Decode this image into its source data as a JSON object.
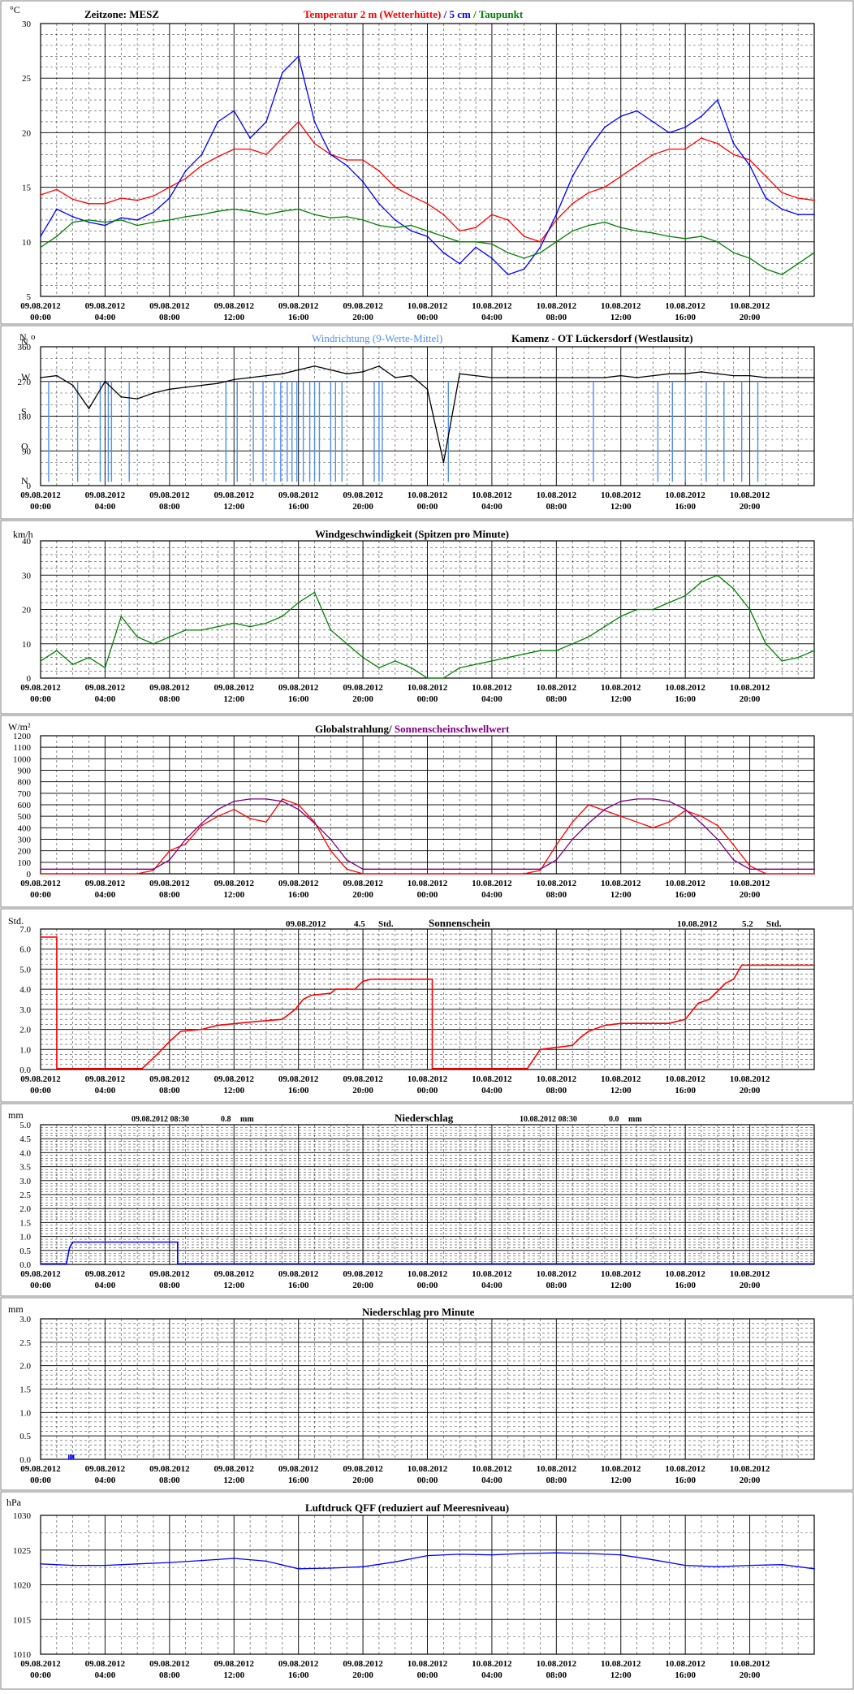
{
  "colors": {
    "temp": "#ff0000",
    "soil": "#0000ff",
    "dew": "#008000",
    "wind_dir_line": "#4f8ff0",
    "wind_dir_avg": "#000000",
    "wind_speed": "#008000",
    "radiation": "#ff0000",
    "threshold": "#800080",
    "sunshine": "#ff0000",
    "precip": "#0000ff",
    "precip_min": "#0000ff",
    "pressure": "#0000ff",
    "grid": "#000000",
    "panel_border": "#808080"
  },
  "x_ticks": [
    {
      "date": "09.08.2012",
      "time": "00:00"
    },
    {
      "date": "09.08.2012",
      "time": "04:00"
    },
    {
      "date": "09.08.2012",
      "time": "08:00"
    },
    {
      "date": "09.08.2012",
      "time": "12:00"
    },
    {
      "date": "09.08.2012",
      "time": "16:00"
    },
    {
      "date": "09.08.2012",
      "time": "20:00"
    },
    {
      "date": "10.08.2012",
      "time": "00:00"
    },
    {
      "date": "10.08.2012",
      "time": "04:00"
    },
    {
      "date": "10.08.2012",
      "time": "08:00"
    },
    {
      "date": "10.08.2012",
      "time": "12:00"
    },
    {
      "date": "10.08.2012",
      "time": "16:00"
    },
    {
      "date": "10.08.2012",
      "time": "20:00"
    }
  ],
  "chart_data": [
    {
      "id": "temperature",
      "type": "line",
      "unit": "°C",
      "timezone_label": "Zeitzone: MESZ",
      "title_parts": [
        "Temperatur 2 m (Wetterhütte)",
        " / ",
        "5 cm",
        " / ",
        "Taupunkt"
      ],
      "ylim": [
        5,
        30
      ],
      "yticks": [
        5,
        10,
        15,
        20,
        25,
        30
      ],
      "x_hours": [
        0,
        1,
        2,
        3,
        4,
        5,
        6,
        7,
        8,
        9,
        10,
        11,
        12,
        13,
        14,
        15,
        16,
        17,
        18,
        19,
        20,
        21,
        22,
        23,
        24,
        25,
        26,
        27,
        28,
        29,
        30,
        31,
        32,
        33,
        34,
        35,
        36,
        37,
        38,
        39,
        40,
        41,
        42,
        43,
        44,
        45,
        46,
        47,
        48
      ],
      "series": [
        {
          "name": "Temperatur 2 m (Wetterhütte)",
          "color": "temp",
          "values": [
            14.3,
            14.8,
            13.9,
            13.5,
            13.5,
            14.0,
            13.8,
            14.2,
            15.0,
            15.8,
            17.0,
            17.8,
            18.5,
            18.5,
            18.0,
            19.5,
            21.0,
            19.0,
            18.0,
            17.5,
            17.5,
            16.5,
            15.0,
            14.2,
            13.5,
            12.5,
            11.0,
            11.3,
            12.5,
            12.0,
            10.5,
            10.0,
            12.0,
            13.5,
            14.5,
            15.0,
            16.0,
            17.0,
            18.0,
            18.5,
            18.5,
            19.5,
            19.0,
            18.0,
            17.5,
            16.0,
            14.5,
            14.0,
            13.8
          ]
        },
        {
          "name": "5 cm",
          "color": "soil",
          "values": [
            10.5,
            13.0,
            12.3,
            11.8,
            11.5,
            12.2,
            12.0,
            12.7,
            14.0,
            16.5,
            18.0,
            21.0,
            22.0,
            19.5,
            21.0,
            25.5,
            27.0,
            21.0,
            18.0,
            17.0,
            15.5,
            13.5,
            12.0,
            11.0,
            10.5,
            9.0,
            8.0,
            9.5,
            8.5,
            7.0,
            7.5,
            9.5,
            12.5,
            16.0,
            18.5,
            20.5,
            21.5,
            22.0,
            21.0,
            20.0,
            20.5,
            21.5,
            23.0,
            19.0,
            17.0,
            14.0,
            13.0,
            12.5,
            12.5
          ]
        },
        {
          "name": "Taupunkt",
          "color": "dew",
          "values": [
            9.5,
            10.5,
            11.8,
            12.0,
            11.8,
            12.0,
            11.5,
            11.8,
            12.0,
            12.3,
            12.5,
            12.8,
            13.0,
            12.8,
            12.5,
            12.8,
            13.0,
            12.5,
            12.2,
            12.3,
            12.0,
            11.5,
            11.3,
            11.5,
            11.0,
            10.5,
            10.0,
            10.0,
            9.8,
            9.0,
            8.5,
            9.0,
            10.0,
            11.0,
            11.5,
            11.8,
            11.3,
            11.0,
            10.8,
            10.5,
            10.3,
            10.5,
            10.0,
            9.0,
            8.5,
            7.5,
            7.0,
            8.0,
            9.0
          ]
        }
      ]
    },
    {
      "id": "wind_direction",
      "type": "line",
      "unit": "N",
      "unit_symbol": "o",
      "title": "Windrichtung (9-Werte-Mittel)",
      "station": "Kamenz - OT Lückersdorf (Westlausitz)",
      "ylim": [
        0,
        360
      ],
      "yticks": [
        0,
        90,
        180,
        270,
        360
      ],
      "compass_labels": [
        "N",
        "O",
        "S",
        "W",
        "N"
      ],
      "x_hours": [
        0,
        1,
        2,
        3,
        4,
        5,
        6,
        7,
        8,
        9,
        10,
        11,
        12,
        13,
        14,
        15,
        16,
        17,
        18,
        19,
        20,
        21,
        22,
        23,
        24,
        25,
        26,
        27,
        28,
        29,
        30,
        31,
        32,
        33,
        34,
        35,
        36,
        37,
        38,
        39,
        40,
        41,
        42,
        43,
        44,
        45,
        46,
        47,
        48
      ],
      "series": [
        {
          "name": "Windrichtung (9-Werte-Mittel)",
          "color": "wind_dir_avg",
          "values": [
            280,
            285,
            260,
            200,
            270,
            230,
            225,
            240,
            250,
            255,
            260,
            265,
            275,
            280,
            285,
            290,
            300,
            310,
            300,
            290,
            295,
            310,
            280,
            285,
            250,
            60,
            290,
            285,
            280,
            280,
            280,
            280,
            280,
            280,
            280,
            280,
            285,
            280,
            285,
            290,
            290,
            295,
            290,
            285,
            285,
            280,
            280,
            280,
            280
          ]
        }
      ],
      "spike_hours": [
        0.5,
        2.3,
        3.7,
        4.2,
        4.4,
        5.5,
        11.5,
        12.2,
        13.2,
        13.8,
        14.5,
        14.9,
        15.3,
        15.6,
        15.9,
        16.3,
        16.7,
        17.0,
        17.3,
        18.0,
        18.3,
        18.7,
        20.7,
        21.0,
        21.2,
        25.3,
        34.3,
        38.3,
        39.2,
        40.0,
        41.3,
        42.4,
        43.5,
        44.5
      ]
    },
    {
      "id": "wind_speed",
      "type": "line",
      "unit": "km/h",
      "title": "Windgeschwindigkeit (Spitzen pro Minute)",
      "ylim": [
        0,
        40
      ],
      "yticks": [
        0,
        10,
        20,
        30,
        40
      ],
      "x_hours": [
        0,
        1,
        2,
        3,
        4,
        5,
        6,
        7,
        8,
        9,
        10,
        11,
        12,
        13,
        14,
        15,
        16,
        17,
        18,
        19,
        20,
        21,
        22,
        23,
        24,
        25,
        26,
        27,
        28,
        29,
        30,
        31,
        32,
        33,
        34,
        35,
        36,
        37,
        38,
        39,
        40,
        41,
        42,
        43,
        44,
        45,
        46,
        47,
        48
      ],
      "series": [
        {
          "name": "Windgeschwindigkeit",
          "color": "wind_speed",
          "values": [
            5,
            8,
            4,
            6,
            3,
            18,
            12,
            10,
            12,
            14,
            14,
            15,
            16,
            15,
            16,
            18,
            22,
            25,
            14,
            10,
            6,
            3,
            5,
            3,
            0,
            0,
            3,
            4,
            5,
            6,
            7,
            8,
            8,
            10,
            12,
            15,
            18,
            20,
            20,
            22,
            24,
            28,
            30,
            26,
            20,
            10,
            5,
            6,
            8
          ]
        }
      ]
    },
    {
      "id": "global_radiation",
      "type": "line",
      "unit": "W/m²",
      "title_parts": [
        "Globalstrahlung/ ",
        "Sonnenscheinschwellwert"
      ],
      "ylim": [
        0,
        1200
      ],
      "yticks": [
        0,
        100,
        200,
        300,
        400,
        500,
        600,
        700,
        800,
        900,
        1000,
        1100,
        1200
      ],
      "x_hours": [
        0,
        1,
        2,
        3,
        4,
        5,
        6,
        7,
        8,
        9,
        10,
        11,
        12,
        13,
        14,
        15,
        16,
        17,
        18,
        19,
        20,
        21,
        22,
        23,
        24,
        25,
        26,
        27,
        28,
        29,
        30,
        31,
        32,
        33,
        34,
        35,
        36,
        37,
        38,
        39,
        40,
        41,
        42,
        43,
        44,
        45,
        46,
        47,
        48
      ],
      "series": [
        {
          "name": "Globalstrahlung",
          "color": "radiation",
          "values": [
            0,
            0,
            0,
            0,
            0,
            0,
            0,
            30,
            200,
            260,
            420,
            500,
            560,
            480,
            450,
            650,
            600,
            450,
            200,
            40,
            0,
            0,
            0,
            0,
            0,
            0,
            0,
            0,
            0,
            0,
            0,
            30,
            250,
            450,
            600,
            550,
            500,
            450,
            400,
            450,
            550,
            500,
            420,
            250,
            70,
            0,
            0,
            0,
            0
          ]
        },
        {
          "name": "Sonnenscheinschwellwert",
          "color": "threshold",
          "values": [
            40,
            40,
            40,
            40,
            40,
            40,
            40,
            40,
            120,
            300,
            440,
            560,
            630,
            650,
            650,
            630,
            560,
            440,
            300,
            120,
            40,
            40,
            40,
            40,
            40,
            40,
            40,
            40,
            40,
            40,
            40,
            40,
            120,
            300,
            440,
            560,
            630,
            650,
            650,
            630,
            560,
            440,
            300,
            120,
            40,
            40,
            40,
            40,
            40
          ]
        }
      ]
    },
    {
      "id": "sunshine",
      "type": "line",
      "unit": "Std.",
      "title": "Sonnenschein",
      "day1_label": "09.08.2012",
      "day1_value": "4.5",
      "day1_unit": "Std.",
      "day2_label": "10.08.2012",
      "day2_value": "5.2",
      "day2_unit": "Std.",
      "ylim": [
        0,
        7
      ],
      "yticks": [
        0,
        1,
        2,
        3,
        4,
        5,
        6,
        7
      ],
      "ytick_labels": [
        "0.0",
        "1.0",
        "2.0",
        "3.0",
        "4.0",
        "5.0",
        "6.0",
        "7.0"
      ],
      "series": [
        {
          "name": "Sonnenschein",
          "color": "sunshine",
          "points": [
            [
              0,
              6.6
            ],
            [
              1,
              6.6
            ],
            [
              1,
              0.05
            ],
            [
              6.3,
              0.05
            ],
            [
              7.3,
              0.8
            ],
            [
              8,
              1.4
            ],
            [
              8.7,
              1.9
            ],
            [
              10,
              2.0
            ],
            [
              11,
              2.2
            ],
            [
              12.2,
              2.3
            ],
            [
              13.5,
              2.4
            ],
            [
              15,
              2.5
            ],
            [
              15.8,
              3.0
            ],
            [
              16.3,
              3.5
            ],
            [
              16.8,
              3.7
            ],
            [
              18,
              3.8
            ],
            [
              18.3,
              4.0
            ],
            [
              19.5,
              4.0
            ],
            [
              20.0,
              4.4
            ],
            [
              20.5,
              4.5
            ],
            [
              24.3,
              4.5
            ],
            [
              24.3,
              0.05
            ],
            [
              29.0,
              0.05
            ],
            [
              30.2,
              0.05
            ],
            [
              31.0,
              1.0
            ],
            [
              32.0,
              1.1
            ],
            [
              33.0,
              1.2
            ],
            [
              33.5,
              1.6
            ],
            [
              34.0,
              1.9
            ],
            [
              35.0,
              2.2
            ],
            [
              36.0,
              2.3
            ],
            [
              39.0,
              2.3
            ],
            [
              40.0,
              2.5
            ],
            [
              40.8,
              3.3
            ],
            [
              41.5,
              3.5
            ],
            [
              42.5,
              4.3
            ],
            [
              43.0,
              4.5
            ],
            [
              43.5,
              5.2
            ],
            [
              48,
              5.2
            ]
          ]
        }
      ]
    },
    {
      "id": "precipitation",
      "type": "line",
      "unit": "mm",
      "title": "Niederschlag",
      "day1_label": "09.08.2012 08:30",
      "day1_value": "0.8",
      "day1_unit": "mm",
      "day2_label": "10.08.2012 08:30",
      "day2_value": "0.0",
      "day2_unit": "mm",
      "ylim": [
        0,
        5
      ],
      "yticks": [
        0,
        0.5,
        1,
        1.5,
        2,
        2.5,
        3,
        3.5,
        4,
        4.5,
        5
      ],
      "ytick_labels": [
        "0.0",
        "0.5",
        "1.0",
        "1.5",
        "2.0",
        "2.5",
        "3.0",
        "3.5",
        "4.0",
        "4.5",
        "5.0"
      ],
      "series": [
        {
          "name": "Niederschlag",
          "color": "precip",
          "points": [
            [
              0,
              0.02
            ],
            [
              1.6,
              0.02
            ],
            [
              1.8,
              0.6
            ],
            [
              2.0,
              0.8
            ],
            [
              8.5,
              0.8
            ],
            [
              8.5,
              0.02
            ],
            [
              48,
              0.02
            ]
          ]
        }
      ]
    },
    {
      "id": "precipitation_per_minute",
      "type": "bar",
      "unit": "mm",
      "title": "Niederschlag pro Minute",
      "ylim": [
        0,
        3
      ],
      "yticks": [
        0,
        0.5,
        1,
        1.5,
        2,
        2.5,
        3
      ],
      "ytick_labels": [
        "0.0",
        "0.5",
        "1.0",
        "1.5",
        "2.0",
        "2.5",
        "3.0"
      ],
      "series": [
        {
          "name": "Niederschlag pro Minute",
          "color": "precip_min",
          "points": [
            [
              1.75,
              0.1
            ],
            [
              1.85,
              0.1
            ],
            [
              1.95,
              0.1
            ],
            [
              2.05,
              0.1
            ]
          ]
        }
      ]
    },
    {
      "id": "pressure",
      "type": "line",
      "unit": "hPa",
      "title": "Luftdruck QFF (reduziert auf Meeresniveau)",
      "ylim": [
        1010,
        1030
      ],
      "yticks": [
        1010,
        1015,
        1020,
        1025,
        1030
      ],
      "x_hours": [
        0,
        2,
        4,
        6,
        8,
        10,
        12,
        14,
        16,
        18,
        20,
        22,
        24,
        26,
        28,
        30,
        32,
        34,
        36,
        38,
        40,
        42,
        44,
        46,
        48
      ],
      "series": [
        {
          "name": "Luftdruck QFF",
          "color": "pressure",
          "values": [
            1023,
            1022.8,
            1022.8,
            1023,
            1023.2,
            1023.5,
            1023.8,
            1023.4,
            1022.3,
            1022.4,
            1022.6,
            1023.3,
            1024.2,
            1024.4,
            1024.3,
            1024.5,
            1024.6,
            1024.5,
            1024.3,
            1023.6,
            1022.8,
            1022.6,
            1022.8,
            1022.9,
            1022.3
          ]
        }
      ]
    }
  ]
}
